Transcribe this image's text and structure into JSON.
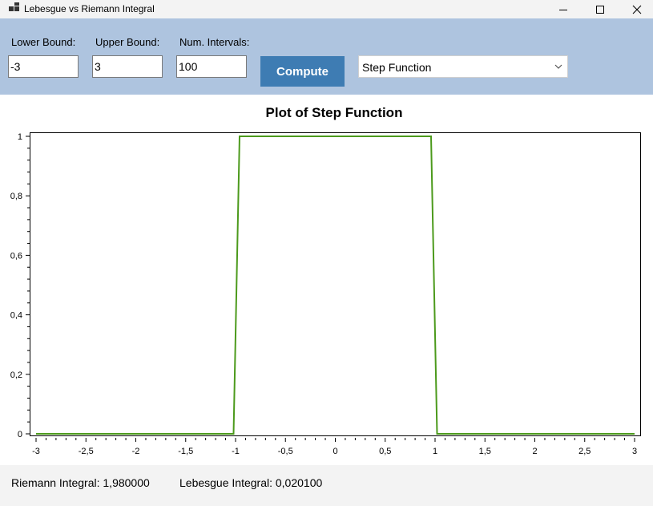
{
  "window": {
    "title": "Lebesgue vs Riemann Integral",
    "controls": [
      "minimize-icon",
      "maximize-icon",
      "close-icon"
    ]
  },
  "inputs": {
    "lower_label": "Lower Bound:",
    "lower_value": "-3",
    "upper_label": "Upper Bound:",
    "upper_value": "3",
    "intervals_label": "Num. Intervals:",
    "intervals_value": "100",
    "compute_label": "Compute",
    "function_selected": "Step Function"
  },
  "colors": {
    "toolbar_bg": "#aec4df",
    "compute_bg": "#3e7cb3",
    "series": "#4c9a1c"
  },
  "chart_data": {
    "type": "line",
    "title": "Plot of Step Function",
    "xlim": [
      -3,
      3
    ],
    "ylim": [
      0,
      1
    ],
    "x_ticks": [
      "-3",
      "-2,5",
      "-2",
      "-1,5",
      "-1",
      "-0,5",
      "0",
      "0,5",
      "1",
      "1,5",
      "2",
      "2,5",
      "3"
    ],
    "y_ticks": [
      "0",
      "0,2",
      "0,4",
      "0,6",
      "0,8",
      "1"
    ],
    "grid": false,
    "series": [
      {
        "x": [
          -3,
          -1.02,
          -0.96,
          0.96,
          1.02,
          3
        ],
        "y": [
          0,
          0,
          1,
          1,
          0,
          0
        ]
      }
    ]
  },
  "status": {
    "riemann": "Riemann Integral: 1,980000",
    "lebesgue": "Lebesgue Integral: 0,020100"
  }
}
